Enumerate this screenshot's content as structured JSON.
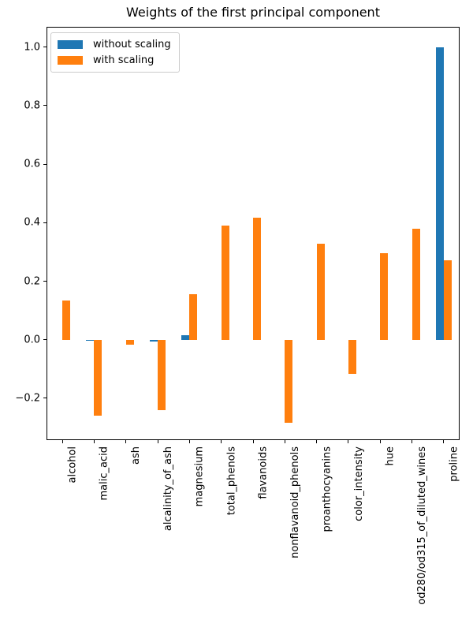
{
  "title": "Weights of the first principal component",
  "chart_data": {
    "type": "bar",
    "title": "Weights of the first principal component",
    "categories": [
      "alcohol",
      "malic_acid",
      "ash",
      "alcalinity_of_ash",
      "magnesium",
      "total_phenols",
      "flavanoids",
      "nonflavanoid_phenols",
      "proanthocyanins",
      "color_intensity",
      "hue",
      "od280/od315_of_diluted_wines",
      "proline"
    ],
    "series": [
      {
        "name": "without scaling",
        "color": "#1f77b4",
        "values": [
          0,
          -0.004,
          0,
          -0.005,
          0.016,
          0,
          0,
          0,
          0,
          0,
          0,
          0,
          1.0
        ]
      },
      {
        "name": "with scaling",
        "color": "#ff7f0e",
        "values": [
          0.135,
          -0.26,
          -0.016,
          -0.241,
          0.156,
          0.391,
          0.417,
          -0.284,
          0.327,
          -0.117,
          0.296,
          0.379,
          0.271
        ]
      }
    ],
    "xlabel": "",
    "ylabel": "",
    "yticks": [
      1.0,
      0.8,
      0.6,
      0.4,
      0.2,
      0.0,
      -0.2
    ],
    "ytick_labels": [
      "1.0",
      "0.8",
      "0.6",
      "0.4",
      "0.2",
      "0.0",
      "−0.2"
    ],
    "ylim": [
      -0.34,
      1.07
    ],
    "grid": false,
    "legend_position": "upper left",
    "bar_width": 0.25,
    "axis_color": "#000000",
    "background_color": "#ffffff"
  }
}
